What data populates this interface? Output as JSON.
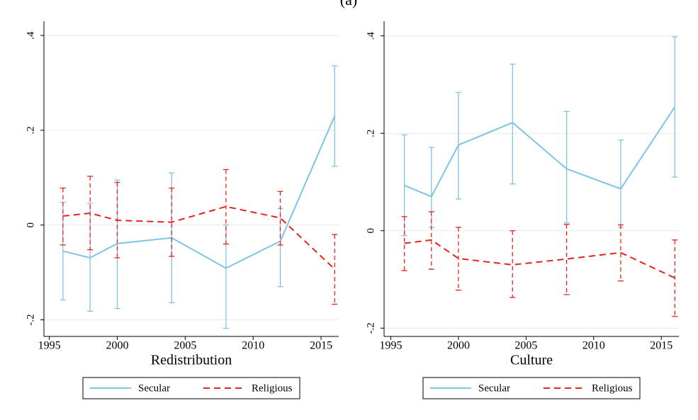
{
  "title": "(a)",
  "chart_data": [
    {
      "type": "line",
      "xlabel": "Redistribution",
      "x": [
        1996,
        1998,
        2000,
        2004,
        2008,
        2012,
        2016
      ],
      "xlim": [
        1994.6,
        2016.3
      ],
      "xticks": [
        1995,
        2000,
        2005,
        2010,
        2015
      ],
      "ylim": [
        -0.235,
        0.43
      ],
      "yticks": [
        {
          "value": -0.2,
          "label": "-.2"
        },
        {
          "value": 0,
          "label": "0"
        },
        {
          "value": 0.2,
          "label": ".2"
        },
        {
          "value": 0.4,
          "label": ".4"
        }
      ],
      "grid": true,
      "legend": "bottom",
      "series": [
        {
          "name": "Secular",
          "color": "#7ec4e4",
          "line_style": "solid",
          "values": [
            -0.055,
            -0.069,
            -0.039,
            -0.027,
            -0.091,
            -0.034,
            0.23
          ],
          "lower": [
            -0.158,
            -0.182,
            -0.176,
            -0.164,
            -0.218,
            -0.13,
            0.124
          ],
          "upper": [
            0.048,
            0.046,
            0.095,
            0.11,
            0.0,
            0.035,
            0.336
          ]
        },
        {
          "name": "Religious",
          "color": "#e8221c",
          "line_style": "dashed",
          "values": [
            0.019,
            0.025,
            0.01,
            0.006,
            0.039,
            0.015,
            -0.093
          ],
          "lower": [
            -0.042,
            -0.052,
            -0.069,
            -0.066,
            -0.04,
            -0.042,
            -0.167
          ],
          "upper": [
            0.078,
            0.103,
            0.09,
            0.078,
            0.117,
            0.071,
            -0.02
          ]
        }
      ]
    },
    {
      "type": "line",
      "xlabel": "Culture",
      "x": [
        1996,
        1998,
        2000,
        2004,
        2008,
        2012,
        2016
      ],
      "xlim": [
        1994.5,
        2016.3
      ],
      "xticks": [
        1995,
        2000,
        2005,
        2010,
        2015
      ],
      "ylim": [
        -0.217,
        0.43
      ],
      "yticks": [
        {
          "value": -0.2,
          "label": "-.2"
        },
        {
          "value": 0,
          "label": "0"
        },
        {
          "value": 0.2,
          "label": ".2"
        },
        {
          "value": 0.4,
          "label": ".4"
        }
      ],
      "grid": true,
      "legend": "bottom",
      "series": [
        {
          "name": "Secular",
          "color": "#7ec4e4",
          "line_style": "solid",
          "values": [
            0.093,
            0.07,
            0.176,
            0.222,
            0.127,
            0.086,
            0.254
          ],
          "lower": [
            -0.01,
            0.007,
            0.065,
            0.096,
            0.016,
            0.007,
            0.11
          ],
          "upper": [
            0.197,
            0.171,
            0.284,
            0.342,
            0.245,
            0.186,
            0.398
          ]
        },
        {
          "name": "Religious",
          "color": "#e8221c",
          "line_style": "dashed",
          "values": [
            -0.026,
            -0.019,
            -0.057,
            -0.07,
            -0.058,
            -0.045,
            -0.097
          ],
          "lower": [
            -0.082,
            -0.079,
            -0.122,
            -0.137,
            -0.131,
            -0.103,
            -0.176
          ],
          "upper": [
            0.029,
            0.039,
            0.007,
            0.0,
            0.013,
            0.012,
            -0.019
          ]
        }
      ]
    }
  ]
}
